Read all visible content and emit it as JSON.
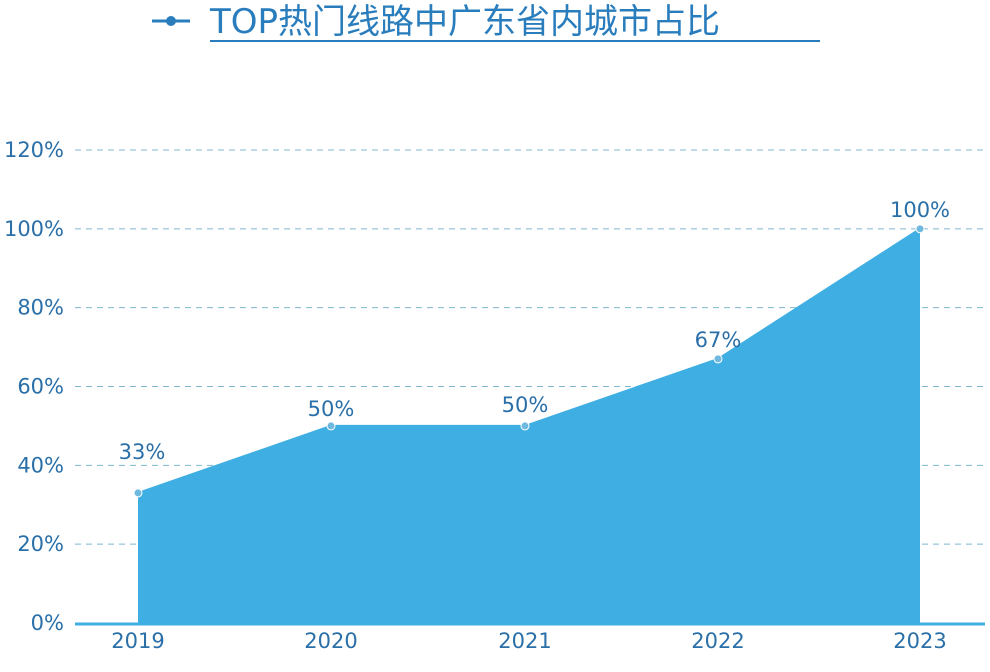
{
  "chart_data": {
    "type": "area",
    "title": "TOP热门线路中广东省内城市占比",
    "categories": [
      "2019",
      "2020",
      "2021",
      "2022",
      "2023"
    ],
    "values": [
      33,
      50,
      50,
      67,
      100
    ],
    "data_labels": [
      "33%",
      "50%",
      "50%",
      "67%",
      "100%"
    ],
    "ylim": [
      0,
      120
    ],
    "yticks": [
      0,
      20,
      40,
      60,
      80,
      100,
      120
    ],
    "ytick_labels": [
      "0%",
      "20%",
      "40%",
      "60%",
      "80%",
      "100%",
      "120%"
    ],
    "grid": true,
    "legend": "top-center",
    "colors": {
      "fill": "#3eaee3",
      "line": "#3eaee3",
      "title": "#2a7dbd",
      "ticks": "#2a6fa8",
      "grid": "#7fb8d0",
      "axis": "#3eaee3",
      "marker": "#6fb8e0"
    }
  }
}
